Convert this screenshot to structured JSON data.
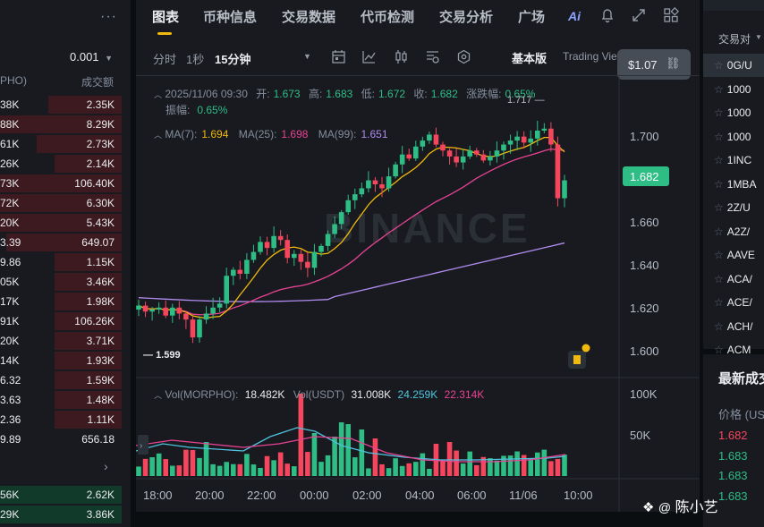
{
  "orderbook": {
    "more_icon": "more-dots-icon",
    "precision": "0.001",
    "col_amount": "PHO)",
    "col_total": "成交额",
    "asks": [
      {
        "amount": "38K",
        "total": "2.35K",
        "depth": 0.6
      },
      {
        "amount": "88K",
        "total": "8.29K",
        "depth": 1.0
      },
      {
        "amount": "61K",
        "total": "2.73K",
        "depth": 0.7
      },
      {
        "amount": "26K",
        "total": "2.14K",
        "depth": 0.55
      },
      {
        "amount": "73K",
        "total": "106.40K",
        "depth": 1.0
      },
      {
        "amount": "72K",
        "total": "6.30K",
        "depth": 1.0
      },
      {
        "amount": "20K",
        "total": "5.43K",
        "depth": 1.0
      },
      {
        "amount": "3.39",
        "total": "649.07",
        "depth": 0.95
      },
      {
        "amount": "9.86",
        "total": "1.15K",
        "depth": 0.55
      },
      {
        "amount": "05K",
        "total": "3.46K",
        "depth": 0.55
      },
      {
        "amount": "17K",
        "total": "1.98K",
        "depth": 0.55
      },
      {
        "amount": "91K",
        "total": "106.26K",
        "depth": 0.55
      },
      {
        "amount": "20K",
        "total": "3.71K",
        "depth": 0.55
      },
      {
        "amount": "14K",
        "total": "1.93K",
        "depth": 0.55
      },
      {
        "amount": "6.32",
        "total": "1.59K",
        "depth": 0.55
      },
      {
        "amount": "3.63",
        "total": "1.48K",
        "depth": 0.55
      },
      {
        "amount": "2.36",
        "total": "1.11K",
        "depth": 0.55
      },
      {
        "amount": "9.89",
        "total": "656.18",
        "depth": 0
      }
    ],
    "chevron_icon": "chevron-right-icon",
    "bids": [
      {
        "amount": "56K",
        "total": "2.62K",
        "depth": 1.0
      },
      {
        "amount": "29K",
        "total": "3.86K",
        "depth": 1.0
      }
    ]
  },
  "tabs": [
    "图表",
    "币种信息",
    "交易数据",
    "代币检测",
    "交易分析",
    "广场"
  ],
  "header_icons": [
    "ai-icon",
    "bell-icon",
    "expand-icon",
    "grid-icon"
  ],
  "timeframes": {
    "t1": "分时",
    "t2": "1秒",
    "t3": "15分钟"
  },
  "toolbar_icons": [
    "dropdown-icon",
    "calendar-icon",
    "line-tool-icon",
    "candle-type-icon",
    "indicator-icon",
    "settings-hex-icon"
  ],
  "views": {
    "basic": "基本版",
    "tv": "Trading View"
  },
  "price_tooltip": "$1.07",
  "ohlc": {
    "date": "2025/11/06 09:30",
    "open_label": "开:",
    "open": "1.673",
    "high_label": "高:",
    "high": "1.683",
    "low_label": "低:",
    "low": "1.672",
    "close_label": "收:",
    "close": "1.682",
    "change_label": "涨跌幅:",
    "change": "0.65%",
    "amp_label": "振幅:",
    "amp": "0.65%"
  },
  "ma": {
    "ma7_label": "MA(7):",
    "ma7": "1.694",
    "ma25_label": "MA(25):",
    "ma25": "1.698",
    "ma99_label": "MA(99):",
    "ma99": "1.651"
  },
  "high_marker": "1.717",
  "low_marker": "1.599",
  "watermark": "BINANCE",
  "current_price": "1.682",
  "vol": {
    "label1": "Vol(MORPHO):",
    "v1": "18.482K",
    "label2": "Vol(USDT)",
    "v2": "31.008K",
    "v3": "24.259K",
    "v4": "22.314K",
    "axis": [
      "100K",
      "50K"
    ]
  },
  "chart_data": {
    "type": "line",
    "title": "",
    "y_ticks": [
      "1.700",
      "1.680",
      "1.660",
      "1.640",
      "1.620",
      "1.600"
    ],
    "ylim": [
      1.59,
      1.725
    ],
    "x_ticks": [
      "18:00",
      "20:00",
      "22:00",
      "00:00",
      "02:00",
      "04:00",
      "06:00",
      "11/06",
      "10:00"
    ],
    "series": [
      {
        "values": [
          1.619,
          1.616,
          1.617,
          1.618,
          1.614,
          1.618,
          1.615,
          1.612,
          1.603,
          1.612,
          1.615,
          1.618,
          1.62,
          1.634,
          1.637,
          1.635,
          1.642,
          1.646,
          1.651,
          1.648,
          1.654,
          1.652,
          1.643,
          1.645,
          1.641,
          1.638,
          1.646,
          1.649,
          1.655,
          1.66,
          1.666,
          1.672,
          1.675,
          1.678,
          1.682,
          1.68,
          1.678,
          1.684,
          1.69,
          1.695,
          1.693,
          1.699,
          1.702,
          1.705,
          1.7,
          1.697,
          1.694,
          1.691,
          1.694,
          1.697,
          1.695,
          1.692,
          1.694,
          1.697,
          1.7,
          1.702,
          1.704,
          1.701,
          1.703,
          1.707,
          1.708,
          1.7,
          1.673,
          1.682
        ]
      }
    ]
  },
  "pairs": {
    "header": "交易对",
    "items": [
      "0G/U",
      "1000",
      "1000",
      "1000",
      "1INC",
      "1MBA",
      "2Z/U",
      "A2Z/",
      "AAVE",
      "ACA/",
      "ACE/",
      "ACH/",
      "ACM"
    ]
  },
  "trades": {
    "title": "最新成交",
    "col": "价格 (US",
    "rows": [
      {
        "price": "1.682",
        "color": "#f6465d"
      },
      {
        "price": "1.683",
        "color": "#2ebd85"
      },
      {
        "price": "1.683",
        "color": "#2ebd85"
      },
      {
        "price": "1.683",
        "color": "#2ebd85"
      }
    ]
  },
  "footer": {
    "author": "陈小艺"
  }
}
